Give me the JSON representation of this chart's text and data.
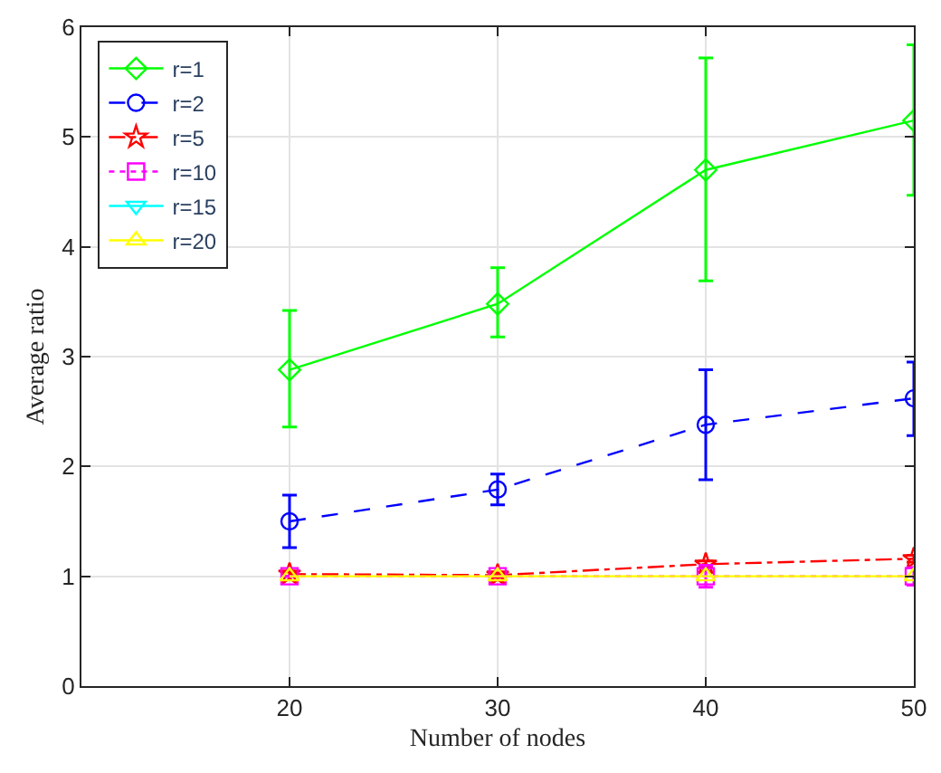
{
  "chart_data": {
    "type": "line",
    "xlabel": "Number of nodes",
    "ylabel": "Average ratio",
    "x": [
      20,
      30,
      40,
      50
    ],
    "xlim": [
      10,
      50
    ],
    "xticks": [
      20,
      30,
      40,
      50
    ],
    "ylim": [
      0,
      6
    ],
    "yticks": [
      0,
      1,
      2,
      3,
      4,
      5,
      6
    ],
    "grid": true,
    "legend": "top left",
    "series": [
      {
        "name": "r=1",
        "color": "#00ff00",
        "marker": "diamond",
        "line_style": "solid",
        "values": [
          2.88,
          3.48,
          4.7,
          5.15
        ],
        "errors": [
          [
            2.36,
            3.42
          ],
          [
            3.18,
            3.81
          ],
          [
            3.69,
            5.72
          ],
          [
            4.47,
            5.84
          ]
        ]
      },
      {
        "name": "r=2",
        "color": "#0000ff",
        "marker": "circle",
        "line_style": "dashed",
        "values": [
          1.5,
          1.79,
          2.38,
          2.62
        ],
        "errors": [
          [
            1.26,
            1.74
          ],
          [
            1.65,
            1.93
          ],
          [
            1.88,
            2.88
          ],
          [
            2.28,
            2.95
          ]
        ]
      },
      {
        "name": "r=5",
        "color": "#ff0000",
        "marker": "star",
        "line_style": "dashdot",
        "values": [
          1.02,
          1.01,
          1.11,
          1.16
        ],
        "errors": [
          0.02,
          0.02,
          0.03,
          0.03
        ]
      },
      {
        "name": "r=10",
        "color": "#ff00ff",
        "marker": "square",
        "line_style": "dotted",
        "values": [
          1.0,
          1.0,
          1.0,
          1.0
        ],
        "errors": [
          null,
          null,
          0.1,
          0.08
        ]
      },
      {
        "name": "r=15",
        "color": "#00ffff",
        "marker": "triangle-down",
        "line_style": "solid",
        "values": [
          null,
          null,
          null,
          null
        ]
      },
      {
        "name": "r=20",
        "color": "#ffff00",
        "marker": "triangle",
        "line_style": "solid",
        "values": [
          1.0,
          1.0,
          1.0,
          1.0
        ]
      }
    ]
  }
}
